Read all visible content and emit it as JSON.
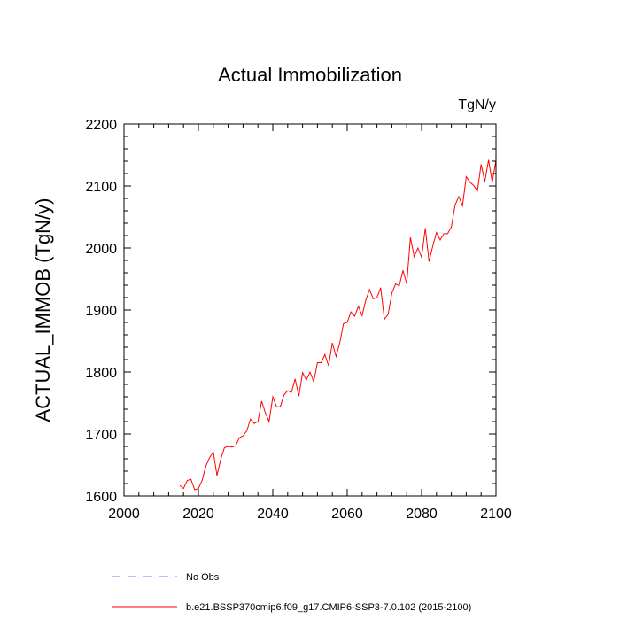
{
  "chart_data": {
    "type": "line",
    "title": "Actual Immobilization",
    "units_label": "TgN/y",
    "ylabel": "ACTUAL_IMMOB  (TgN/y)",
    "xlabel": "",
    "xlim": [
      2000,
      2100
    ],
    "ylim": [
      1600,
      2200
    ],
    "xticks": [
      2000,
      2020,
      2040,
      2060,
      2080,
      2100
    ],
    "yticks": [
      1600,
      1700,
      1800,
      1900,
      2000,
      2100,
      2200
    ],
    "xtick_labels": [
      "2000",
      "2020",
      "2040",
      "2060",
      "2080",
      "2100"
    ],
    "ytick_labels": [
      "1600",
      "1700",
      "1800",
      "1900",
      "2000",
      "2100",
      "2200"
    ],
    "grid": false,
    "legend_position": "bottom",
    "series": [
      {
        "name": "b.e21.BSSP370cmip6.f09_g17.CMIP6-SSP3-7.0.102 (2015-2100)",
        "color": "#ff0000",
        "style": "solid",
        "x": [
          2015,
          2016,
          2017,
          2018,
          2019,
          2020,
          2021,
          2022,
          2023,
          2024,
          2025,
          2026,
          2027,
          2028,
          2029,
          2030,
          2031,
          2032,
          2033,
          2034,
          2035,
          2036,
          2037,
          2038,
          2039,
          2040,
          2041,
          2042,
          2043,
          2044,
          2045,
          2046,
          2047,
          2048,
          2049,
          2050,
          2051,
          2052,
          2053,
          2054,
          2055,
          2056,
          2057,
          2058,
          2059,
          2060,
          2061,
          2062,
          2063,
          2064,
          2065,
          2066,
          2067,
          2068,
          2069,
          2070,
          2071,
          2072,
          2073,
          2074,
          2075,
          2076,
          2077,
          2078,
          2079,
          2080,
          2081,
          2082,
          2083,
          2084,
          2085,
          2086,
          2087,
          2088,
          2089,
          2090,
          2091,
          2092,
          2093,
          2094,
          2095,
          2096,
          2097,
          2098,
          2099,
          2100
        ],
        "y": [
          1617,
          1612,
          1625,
          1627,
          1610,
          1612,
          1625,
          1648,
          1662,
          1671,
          1633,
          1659,
          1678,
          1680,
          1679,
          1681,
          1694,
          1697,
          1705,
          1724,
          1717,
          1720,
          1753,
          1734,
          1720,
          1760,
          1744,
          1744,
          1763,
          1770,
          1767,
          1789,
          1761,
          1799,
          1787,
          1800,
          1784,
          1815,
          1815,
          1828,
          1810,
          1847,
          1825,
          1847,
          1878,
          1880,
          1897,
          1890,
          1906,
          1891,
          1916,
          1933,
          1918,
          1920,
          1936,
          1885,
          1893,
          1927,
          1942,
          1939,
          1964,
          1942,
          2017,
          1986,
          2000,
          1985,
          2032,
          1978,
          2003,
          2025,
          2013,
          2023,
          2023,
          2034,
          2069,
          2083,
          2068,
          2115,
          2106,
          2101,
          2092,
          2135,
          2107,
          2142,
          2106,
          2142
        ]
      },
      {
        "name": "No Obs",
        "color": "#7b7bf0",
        "style": "dashed",
        "x": [],
        "y": []
      }
    ]
  }
}
